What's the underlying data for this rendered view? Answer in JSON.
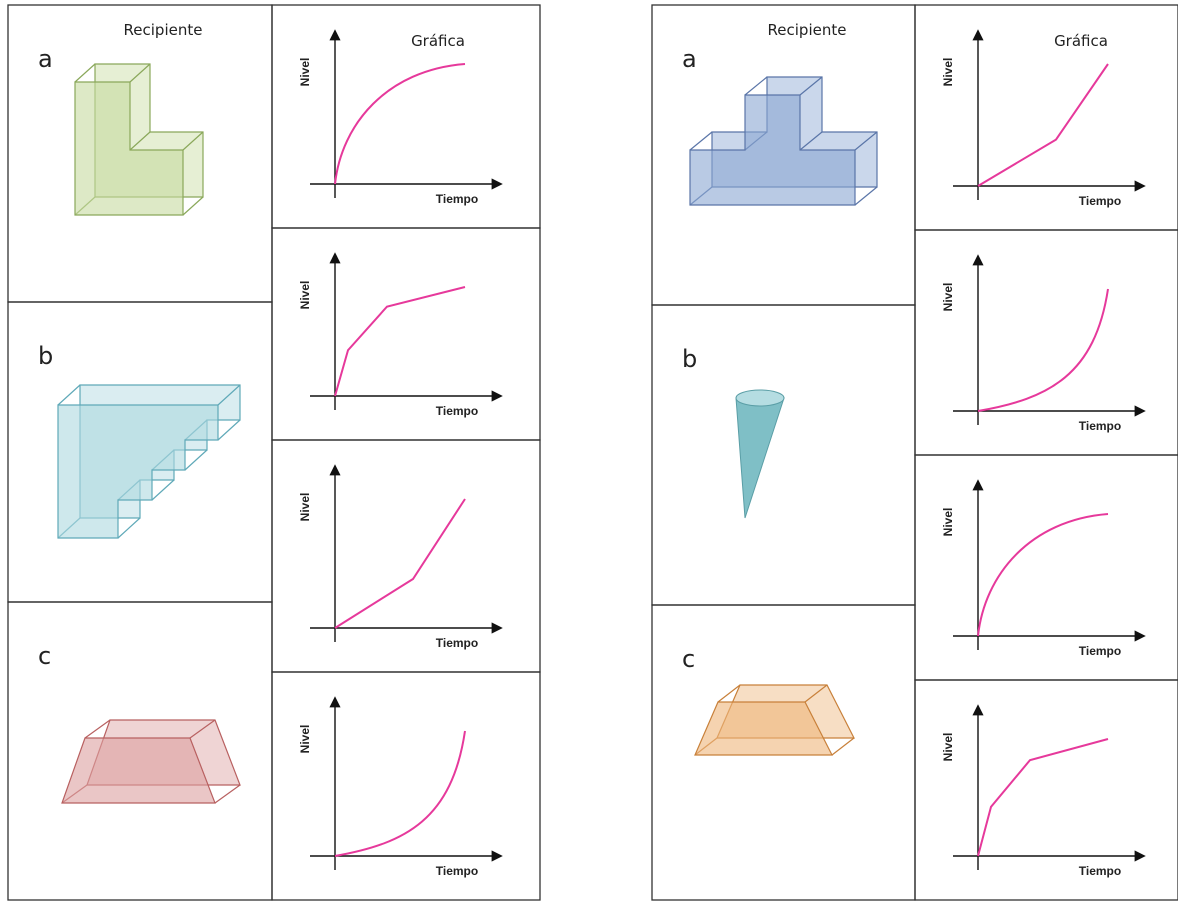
{
  "tables": [
    {
      "header": {
        "recipiente": "Recipiente",
        "grafica": "Gráfica"
      },
      "containers": [
        {
          "label": "a"
        },
        {
          "label": "b"
        },
        {
          "label": "c"
        }
      ],
      "graphs": [
        {
          "y_label": "Nivel",
          "x_label": "Tiempo"
        },
        {
          "y_label": "Nivel",
          "x_label": "Tiempo"
        },
        {
          "y_label": "Nivel",
          "x_label": "Tiempo"
        },
        {
          "y_label": "Nivel",
          "x_label": "Tiempo"
        }
      ]
    },
    {
      "header": {
        "recipiente": "Recipiente",
        "grafica": "Gráfica"
      },
      "containers": [
        {
          "label": "a"
        },
        {
          "label": "b"
        },
        {
          "label": "c"
        }
      ],
      "graphs": [
        {
          "y_label": "Nivel",
          "x_label": "Tiempo"
        },
        {
          "y_label": "Nivel",
          "x_label": "Tiempo"
        },
        {
          "y_label": "Nivel",
          "x_label": "Tiempo"
        },
        {
          "y_label": "Nivel",
          "x_label": "Tiempo"
        }
      ]
    }
  ]
}
